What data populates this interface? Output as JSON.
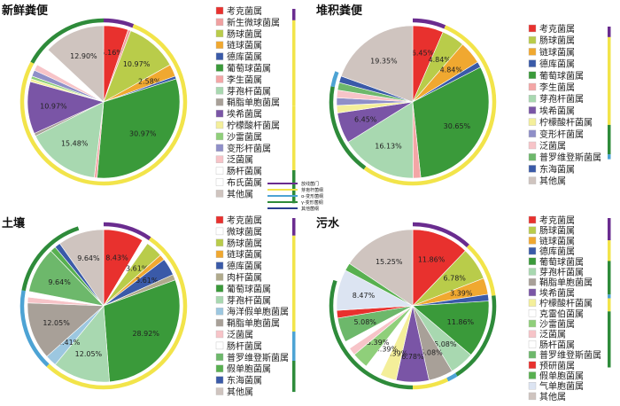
{
  "colors": {
    "考克菌属": "#e8312e",
    "新生微球菌属": "#f0a0a0",
    "肠球菌属": "#b9cc4a",
    "链球菌属": "#f0a830",
    "德库菌属": "#3a5aa8",
    "葡萄球菌属": "#3a9a3a",
    "李生菌属": "#f4a6a6",
    "芽孢杆菌属": "#a8d8b0",
    "鞘脂单胞菌属": "#a8a098",
    "埃希菌属": "#7a55a6",
    "柠檬酸杆菌属": "#f4ef9a",
    "沙雷菌属": "#8fcf7a",
    "变形杆菌属": "#8f8fc8",
    "泛菌属": "#f7c4c8",
    "肠杆菌属": "#ffffff",
    "布氏菌属": "#ffffff",
    "其他属": "#cfc4bf",
    "微球菌属": "#ffffff",
    "肉杆菌属": "#b0aa8c",
    "海洋假单胞菌属": "#9cc7e0",
    "普罗维登斯菌属": "#6db86b",
    "假单胞菌属": "#58b050",
    "东海菌属": "#3a5aa8",
    "克雷伯菌属": "#ffffff",
    "预研菌属": "#e8312e",
    "气单胞菌属": "#dce4f2"
  },
  "phylum_legend": {
    "items": [
      {
        "label": "放线菌门",
        "color": "#6a2c8f"
      },
      {
        "label": "芽孢杆菌纲",
        "color": "#f2e44a"
      },
      {
        "label": "α-变形菌纲",
        "color": "#4da3d4"
      },
      {
        "label": "γ-变形菌纲",
        "color": "#2e8b3a"
      },
      {
        "label": "其他菌纲",
        "color": "#2a3d8f"
      }
    ]
  },
  "chart_data": [
    {
      "type": "pie",
      "title": "新鲜粪便",
      "slices": [
        {
          "name": "考克菌属",
          "value": 5.16,
          "label": "5.16%"
        },
        {
          "name": "新生微球菌属",
          "value": 0.6,
          "label": ""
        },
        {
          "name": "肠球菌属",
          "value": 10.97,
          "label": "10.97%"
        },
        {
          "name": "链球菌属",
          "value": 2.58,
          "label": "2.58%"
        },
        {
          "name": "德库菌属",
          "value": 0.6,
          "label": ""
        },
        {
          "name": "葡萄球菌属",
          "value": 30.97,
          "label": "30.97%"
        },
        {
          "name": "李生菌属",
          "value": 0.6,
          "label": ""
        },
        {
          "name": "芽孢杆菌属",
          "value": 15.48,
          "label": "15.48%"
        },
        {
          "name": "鞘脂单胞菌属",
          "value": 0.6,
          "label": ""
        },
        {
          "name": "埃希菌属",
          "value": 10.97,
          "label": "10.97%"
        },
        {
          "name": "柠檬酸杆菌属",
          "value": 0.6,
          "label": ""
        },
        {
          "name": "沙雷菌属",
          "value": 0.6,
          "label": ""
        },
        {
          "name": "变形杆菌属",
          "value": 1.3,
          "label": ""
        },
        {
          "name": "泛菌属",
          "value": 1.3,
          "label": ""
        },
        {
          "name": "肠杆菌属",
          "value": 2.0,
          "label": ""
        },
        {
          "name": "布氏菌属",
          "value": 1.8,
          "label": ""
        },
        {
          "name": "其他属",
          "value": 12.9,
          "label": "12.90%"
        }
      ],
      "legend": [
        "考克菌属",
        "新生微球菌属",
        "肠球菌属",
        "链球菌属",
        "德库菌属",
        "葡萄球菌属",
        "李生菌属",
        "芽孢杆菌属",
        "鞘脂单胞菌属",
        "埃希菌属",
        "柠檬酸杆菌属",
        "沙雷菌属",
        "变形杆菌属",
        "泛菌属",
        "肠杆菌属",
        "布氏菌属",
        "其他属"
      ],
      "ring": [
        {
          "from": 0.0,
          "to": 5.9,
          "color": "#6a2c8f"
        },
        {
          "from": 5.9,
          "to": 50.0,
          "color": "#f2e44a"
        },
        {
          "from": 50.0,
          "to": 83.0,
          "color": "#f2e44a"
        },
        {
          "from": 83.0,
          "to": 100.0,
          "color": "#2e8b3a"
        }
      ]
    },
    {
      "type": "pie",
      "title": "堆积粪便",
      "slices": [
        {
          "name": "考克菌属",
          "value": 6.45,
          "label": "6.45%"
        },
        {
          "name": "肠球菌属",
          "value": 4.84,
          "label": "4.84%"
        },
        {
          "name": "链球菌属",
          "value": 4.84,
          "label": "4.84%"
        },
        {
          "name": "德库菌属",
          "value": 1.2,
          "label": ""
        },
        {
          "name": "葡萄球菌属",
          "value": 30.65,
          "label": "30.65%"
        },
        {
          "name": "李生菌属",
          "value": 1.6,
          "label": ""
        },
        {
          "name": "芽孢杆菌属",
          "value": 16.13,
          "label": "16.13%"
        },
        {
          "name": "埃希菌属",
          "value": 6.45,
          "label": "6.45%"
        },
        {
          "name": "柠檬酸杆菌属",
          "value": 1.6,
          "label": ""
        },
        {
          "name": "变形杆菌属",
          "value": 1.6,
          "label": ""
        },
        {
          "name": "泛菌属",
          "value": 1.6,
          "label": ""
        },
        {
          "name": "普罗维登斯菌属",
          "value": 1.6,
          "label": ""
        },
        {
          "name": "东海菌属",
          "value": 1.4,
          "label": ""
        },
        {
          "name": "其他属",
          "value": 19.35,
          "label": "19.35%"
        }
      ],
      "legend": [
        "考克菌属",
        "肠球菌属",
        "链球菌属",
        "德库菌属",
        "葡萄球菌属",
        "李生菌属",
        "芽孢杆菌属",
        "埃希菌属",
        "柠檬酸杆菌属",
        "变形杆菌属",
        "泛菌属",
        "普罗维登斯菌属",
        "东海菌属",
        "其他属"
      ],
      "ring": [
        {
          "from": 0.0,
          "to": 6.45,
          "color": "#6a2c8f"
        },
        {
          "from": 6.45,
          "to": 60.0,
          "color": "#f2e44a"
        },
        {
          "from": 60.0,
          "to": 78.0,
          "color": "#2e8b3a"
        },
        {
          "from": 78.0,
          "to": 81.0,
          "color": "#4da3d4"
        }
      ]
    },
    {
      "type": "pie",
      "title": "土壤",
      "slices": [
        {
          "name": "考克菌属",
          "value": 8.43,
          "label": "8.43%"
        },
        {
          "name": "微球菌属",
          "value": 1.2,
          "label": ""
        },
        {
          "name": "肠球菌属",
          "value": 3.61,
          "label": "3.61%"
        },
        {
          "name": "链球菌属",
          "value": 1.2,
          "label": ""
        },
        {
          "name": "德库菌属",
          "value": 3.61,
          "label": "3.61%"
        },
        {
          "name": "肉杆菌属",
          "value": 1.2,
          "label": ""
        },
        {
          "name": "葡萄球菌属",
          "value": 28.92,
          "label": "28.92%"
        },
        {
          "name": "芽孢杆菌属",
          "value": 12.05,
          "label": "12.05%"
        },
        {
          "name": "海洋假单胞菌属",
          "value": 2.41,
          "label": "2.41%"
        },
        {
          "name": "鞘脂单胞菌属",
          "value": 12.05,
          "label": "12.05%"
        },
        {
          "name": "泛菌属",
          "value": 1.2,
          "label": ""
        },
        {
          "name": "肠杆菌属",
          "value": 1.2,
          "label": ""
        },
        {
          "name": "普罗维登斯菌属",
          "value": 9.64,
          "label": "9.64%"
        },
        {
          "name": "假单胞菌属",
          "value": 1.2,
          "label": ""
        },
        {
          "name": "东海菌属",
          "value": 1.2,
          "label": ""
        },
        {
          "name": "其他属",
          "value": 9.64,
          "label": "9.64%"
        }
      ],
      "legend": [
        "考克菌属",
        "微球菌属",
        "肠球菌属",
        "链球菌属",
        "德库菌属",
        "肉杆菌属",
        "葡萄球菌属",
        "芽孢杆菌属",
        "海洋假单胞菌属",
        "鞘脂单胞菌属",
        "泛菌属",
        "肠杆菌属",
        "普罗维登斯菌属",
        "假单胞菌属",
        "东海菌属",
        "其他属"
      ],
      "ring": [
        {
          "from": 0.0,
          "to": 9.6,
          "color": "#6a2c8f"
        },
        {
          "from": 9.6,
          "to": 62.0,
          "color": "#f2e44a"
        },
        {
          "from": 62.0,
          "to": 78.0,
          "color": "#4da3d4"
        },
        {
          "from": 78.0,
          "to": 95.0,
          "color": "#2e8b3a"
        }
      ]
    },
    {
      "type": "pie",
      "title": "污水",
      "slices": [
        {
          "name": "考克菌属",
          "value": 11.86,
          "label": "11.86%"
        },
        {
          "name": "肠球菌属",
          "value": 6.78,
          "label": "6.78%"
        },
        {
          "name": "链球菌属",
          "value": 3.39,
          "label": "3.39%"
        },
        {
          "name": "德库菌属",
          "value": 1.4,
          "label": ""
        },
        {
          "name": "葡萄球菌属",
          "value": 11.86,
          "label": "11.86%"
        },
        {
          "name": "芽孢杆菌属",
          "value": 5.08,
          "label": "5.08%"
        },
        {
          "name": "鞘脂单胞菌属",
          "value": 5.08,
          "label": "5.08%"
        },
        {
          "name": "埃希菌属",
          "value": 6.78,
          "label": "6.78%"
        },
        {
          "name": "柠檬酸杆菌属",
          "value": 3.39,
          "label": "3.39%"
        },
        {
          "name": "克雷伯菌属",
          "value": 3.39,
          "label": "3.39%"
        },
        {
          "name": "沙雷菌属",
          "value": 3.39,
          "label": "3.39%"
        },
        {
          "name": "泛菌属",
          "value": 1.6,
          "label": ""
        },
        {
          "name": "肠杆菌属",
          "value": 1.6,
          "label": ""
        },
        {
          "name": "普罗维登斯菌属",
          "value": 5.08,
          "label": "5.08%"
        },
        {
          "name": "预研菌属",
          "value": 1.6,
          "label": ""
        },
        {
          "name": "气单胞菌属",
          "value": 8.47,
          "label": "8.47%"
        },
        {
          "name": "假单胞菌属",
          "value": 1.6,
          "label": ""
        },
        {
          "name": "其他属",
          "value": 15.25,
          "label": "15.25%"
        }
      ],
      "legend": [
        "考克菌属",
        "肠球菌属",
        "链球菌属",
        "德库菌属",
        "葡萄球菌属",
        "芽孢杆菌属",
        "鞘脂单胞菌属",
        "埃希菌属",
        "柠檬酸杆菌属",
        "克雷伯菌属",
        "沙雷菌属",
        "泛菌属",
        "肠杆菌属",
        "普罗维登斯菌属",
        "预研菌属",
        "假单胞菌属",
        "气单胞菌属",
        "其他属"
      ],
      "ring": [
        {
          "from": 0.0,
          "to": 11.86,
          "color": "#6a2c8f"
        },
        {
          "from": 11.86,
          "to": 23.0,
          "color": "#f2e44a"
        },
        {
          "from": 23.0,
          "to": 41.0,
          "color": "#2e8b3a"
        },
        {
          "from": 41.0,
          "to": 43.0,
          "color": "#4da3d4"
        },
        {
          "from": 43.0,
          "to": 50.0,
          "color": "#f2e44a"
        },
        {
          "from": 50.0,
          "to": 80.0,
          "color": "#2e8b3a"
        }
      ]
    }
  ]
}
